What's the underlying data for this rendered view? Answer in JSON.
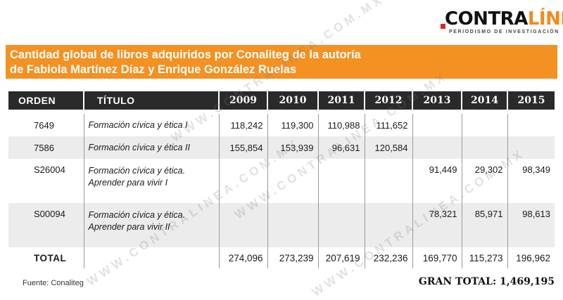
{
  "logo": {
    "brand_part1": "CONTRA",
    "brand_part2": "LÍNEA",
    "tagline": "PERIODISMO DE INVESTIGACIÓN"
  },
  "title": {
    "line1": "Cantidad global de libros adquiridos por Conaliteg de la autoría",
    "line2": "de Fabiola Martínez Díaz y Enrique González Ruelas"
  },
  "watermark": "WWW.CONTRALINEA.COM.MX",
  "chart_data": {
    "type": "table",
    "columns": [
      "ORDEN",
      "TÍTULO",
      "2009",
      "2010",
      "2011",
      "2012",
      "2013",
      "2014",
      "2015"
    ],
    "rows": [
      {
        "orden": "7649",
        "titulo": [
          "Formación cívica y ética I"
        ],
        "values": [
          "118,242",
          "119,300",
          "110,988",
          "111,652",
          "",
          "",
          ""
        ]
      },
      {
        "orden": "7586",
        "titulo": [
          "Formación cívica y ética II"
        ],
        "values": [
          "155,854",
          "153,939",
          "96,631",
          "120,584",
          "",
          "",
          ""
        ]
      },
      {
        "orden": "S26004",
        "titulo": [
          "Formación cívica y ética.",
          "Aprender para vivir I"
        ],
        "values": [
          "",
          "",
          "",
          "",
          "91,449",
          "29,302",
          "98,349"
        ]
      },
      {
        "orden": "S00094",
        "titulo": [
          "Formación cívica y ética.",
          "Aprender para vivir II"
        ],
        "values": [
          "",
          "",
          "",
          "",
          "78,321",
          "85,971",
          "98,613"
        ]
      }
    ],
    "total": {
      "label": "TOTAL",
      "values": [
        "274,096",
        "273,239",
        "207,619",
        "232,236",
        "169,770",
        "115,273",
        "196,962"
      ]
    },
    "source": "Fuente: Conaliteg",
    "grand_total": "GRAN TOTAL: 1,469,195"
  }
}
